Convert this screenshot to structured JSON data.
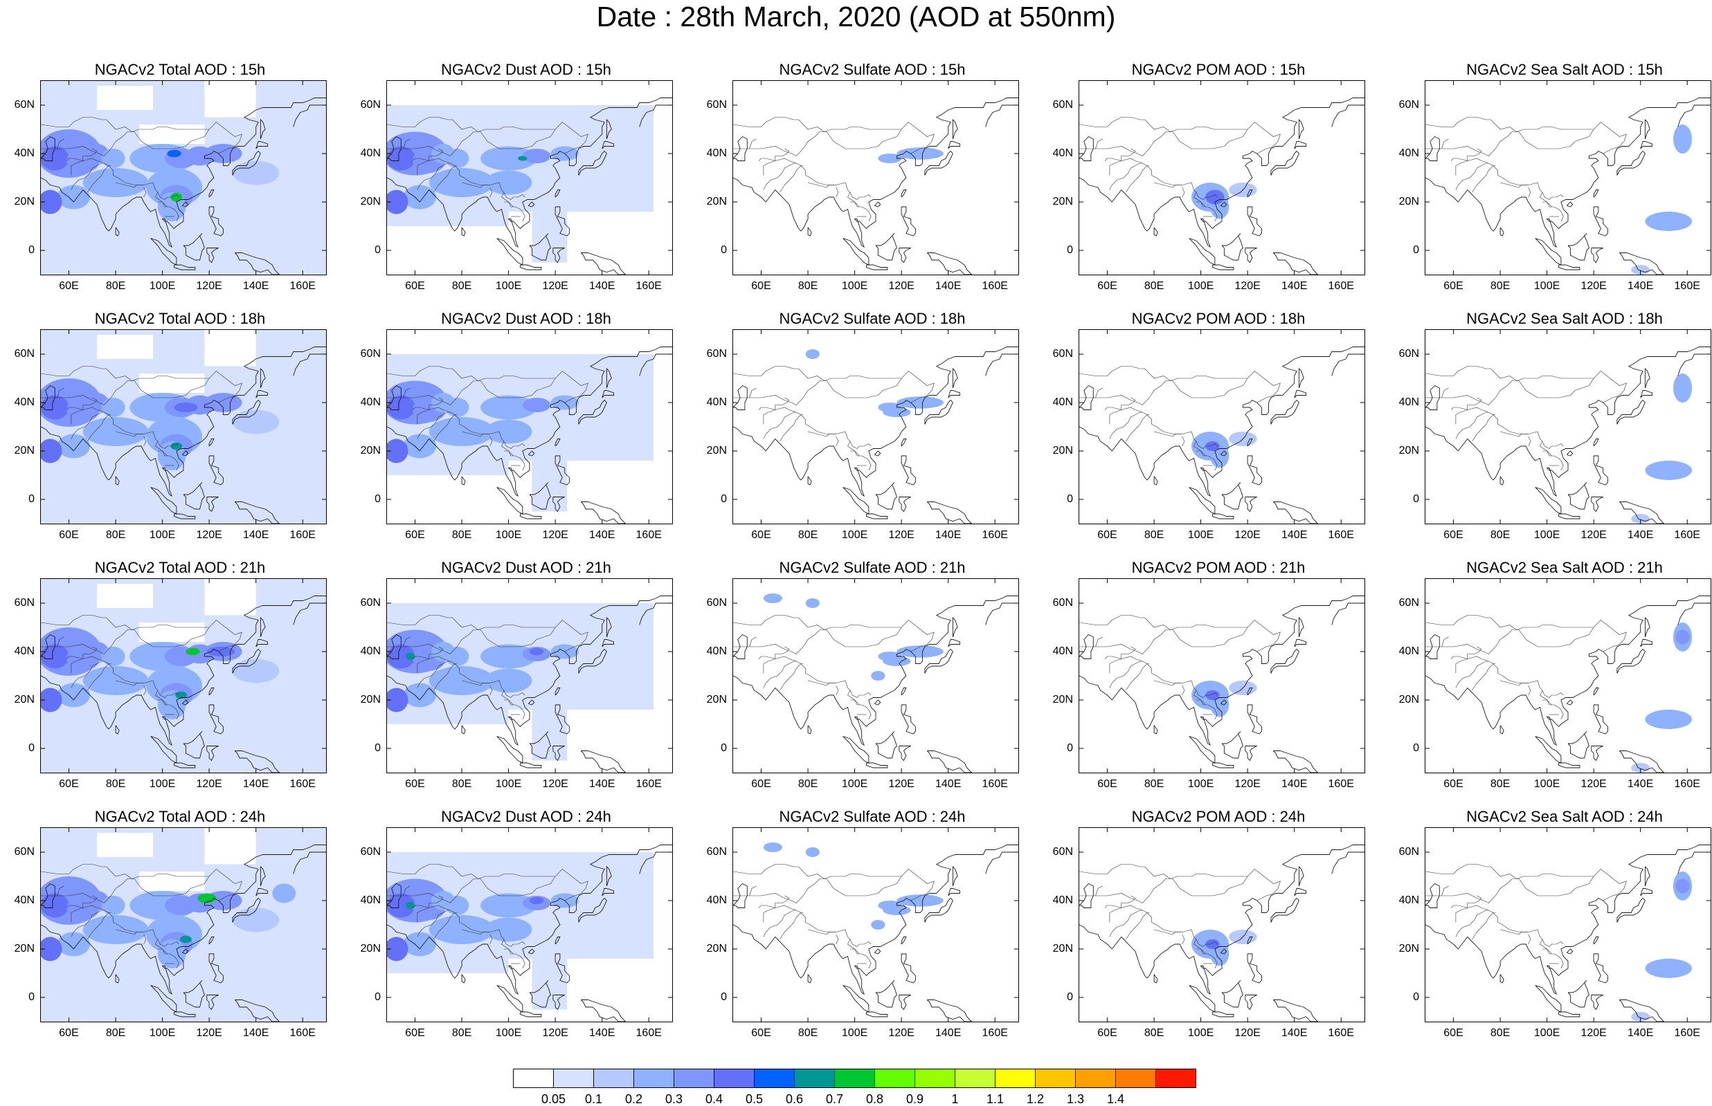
{
  "title": "Date : 28th March, 2020 (AOD at 550nm)",
  "latitude_ticks": [
    "60N",
    "40N",
    "20N",
    "0"
  ],
  "latitude_values": [
    60,
    40,
    20,
    0
  ],
  "longitude_ticks": [
    "60E",
    "80E",
    "100E",
    "120E",
    "140E",
    "160E"
  ],
  "longitude_values": [
    60,
    80,
    100,
    120,
    140,
    160
  ],
  "map_extent": {
    "lon": [
      48,
      170
    ],
    "lat": [
      -10,
      70
    ]
  },
  "species": [
    "total",
    "dust",
    "sulfate",
    "pom",
    "seasalt"
  ],
  "hours": [
    "15h",
    "18h",
    "21h",
    "24h"
  ],
  "panels": [
    [
      {
        "title": "NGACv2 Total AOD : 15h",
        "species": "total"
      },
      {
        "title": "NGACv2 Dust AOD : 15h",
        "species": "dust"
      },
      {
        "title": "NGACv2 Sulfate AOD : 15h",
        "species": "sulfate"
      },
      {
        "title": "NGACv2 POM AOD : 15h",
        "species": "pom"
      },
      {
        "title": "NGACv2 Sea Salt AOD : 15h",
        "species": "seasalt"
      }
    ],
    [
      {
        "title": "NGACv2 Total AOD : 18h",
        "species": "total"
      },
      {
        "title": "NGACv2 Dust AOD : 18h",
        "species": "dust"
      },
      {
        "title": "NGACv2 Sulfate AOD : 18h",
        "species": "sulfate"
      },
      {
        "title": "NGACv2 POM AOD : 18h",
        "species": "pom"
      },
      {
        "title": "NGACv2 Sea Salt AOD : 18h",
        "species": "seasalt"
      }
    ],
    [
      {
        "title": "NGACv2 Total AOD : 21h",
        "species": "total"
      },
      {
        "title": "NGACv2 Dust AOD : 21h",
        "species": "dust"
      },
      {
        "title": "NGACv2 Sulfate AOD : 21h",
        "species": "sulfate"
      },
      {
        "title": "NGACv2 POM AOD : 21h",
        "species": "pom"
      },
      {
        "title": "NGACv2 Sea Salt AOD : 21h",
        "species": "seasalt"
      }
    ],
    [
      {
        "title": "NGACv2 Total AOD : 24h",
        "species": "total"
      },
      {
        "title": "NGACv2 Dust AOD : 24h",
        "species": "dust"
      },
      {
        "title": "NGACv2 Sulfate AOD : 24h",
        "species": "sulfate"
      },
      {
        "title": "NGACv2 POM AOD : 24h",
        "species": "pom"
      },
      {
        "title": "NGACv2 Sea Salt  AOD : 24h",
        "species": "seasalt"
      }
    ]
  ],
  "colorbar": {
    "labels": [
      "0.05",
      "0.1",
      "0.2",
      "0.3",
      "0.4",
      "0.5",
      "0.6",
      "0.7",
      "0.8",
      "0.9",
      "1",
      "1.1",
      "1.2",
      "1.3",
      "1.4"
    ],
    "colors": [
      "#ffffff",
      "#d6e2ff",
      "#b5c9ff",
      "#8eb2ff",
      "#7f96ff",
      "#6370f8",
      "#0063ff",
      "#009696",
      "#00c633",
      "#63ff00",
      "#96ff00",
      "#c6ff33",
      "#ffff00",
      "#ffc600",
      "#ffa000",
      "#ff7c00",
      "#ff1900"
    ]
  }
}
